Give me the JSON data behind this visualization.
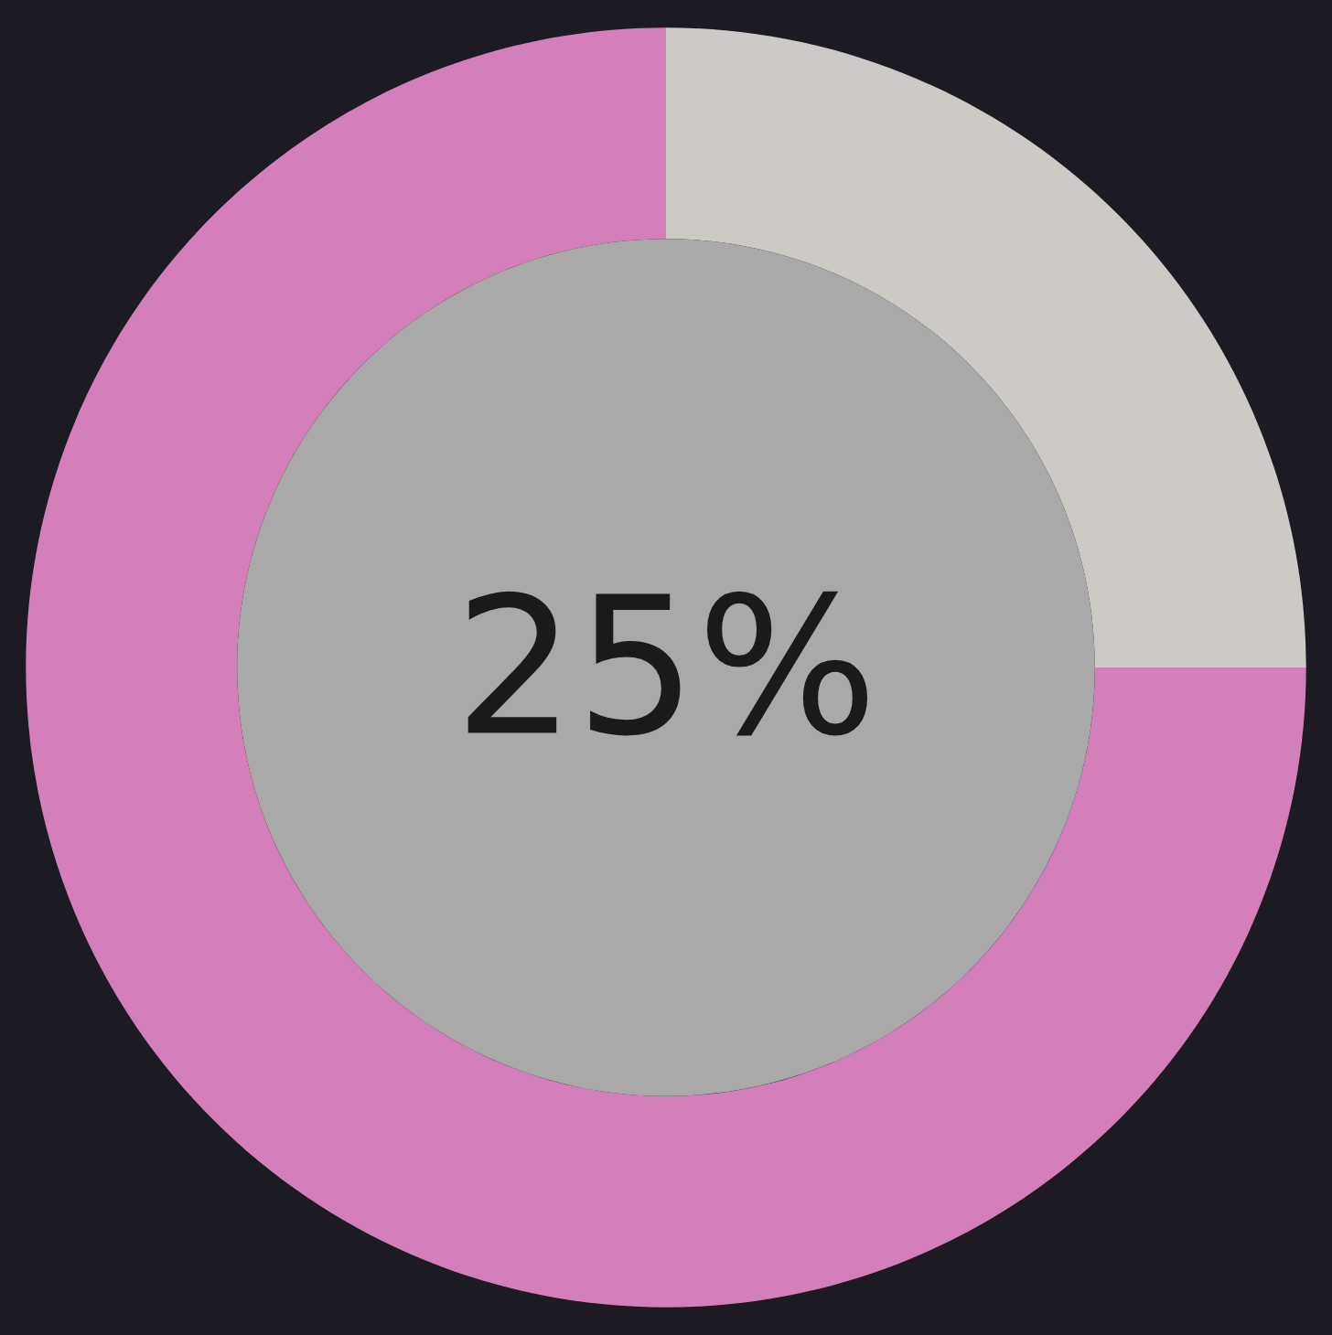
{
  "chart_data": {
    "type": "donut",
    "categories": [
      null,
      null
    ],
    "values": [
      25,
      75
    ],
    "colors": [
      "#cdcac6",
      "#d47fb9"
    ],
    "annotations": [
      "25%"
    ]
  }
}
